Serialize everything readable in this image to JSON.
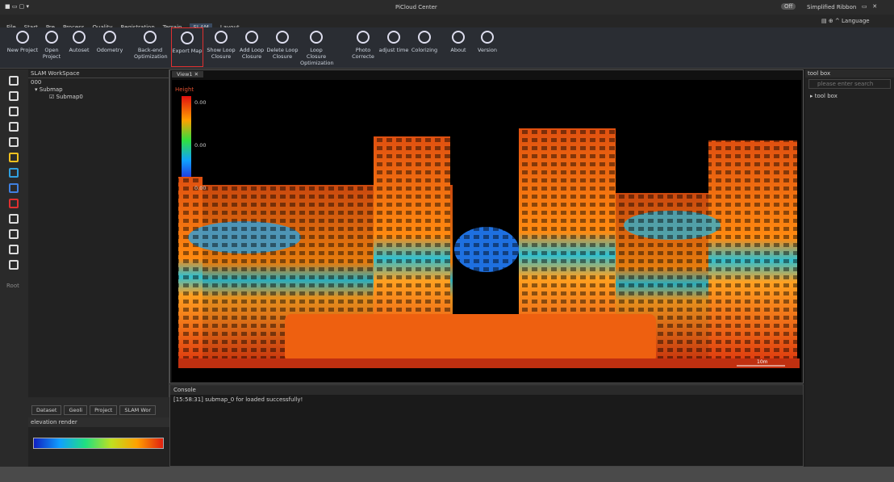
{
  "window": {
    "title": "PiCloud Center",
    "toggle": "Off",
    "simplified": "Simplified Ribbon",
    "language": "Language"
  },
  "menu": [
    "File",
    "Start",
    "Pre",
    "Process",
    "Quality",
    "Registration",
    "Terrain",
    "SLAM",
    "Layout"
  ],
  "ribbon": [
    "New Project",
    "Open Project",
    "Autoset",
    "Odometry",
    "Back-end Optimization",
    "Export Map",
    "Show Loop Closure",
    "Add Loop Closure",
    "Delete Loop Closure",
    "Loop Closure Optimization",
    "Photo Correcte",
    "adjust time",
    "Colorizing",
    "About",
    "Version"
  ],
  "workspace": {
    "title": "SLAM WorkSpace",
    "root": "000",
    "group": "Submap",
    "item": "Submap0"
  },
  "sidebar_label": "Root",
  "view": {
    "tab": "View1",
    "legend_title": "Height",
    "legend_values": [
      "0.00",
      "0.00",
      "0.00"
    ],
    "scale": "10m"
  },
  "console": {
    "title": "Console",
    "line": "[15:58:31] submap_0 for loaded successfully!"
  },
  "bottom_tabs": [
    "Dataset",
    "Geoli",
    "Project",
    "SLAM Wor"
  ],
  "render": {
    "title": "elevation render"
  },
  "toolbox": {
    "title": "tool box",
    "search": "please enter search",
    "item": "tool box"
  }
}
